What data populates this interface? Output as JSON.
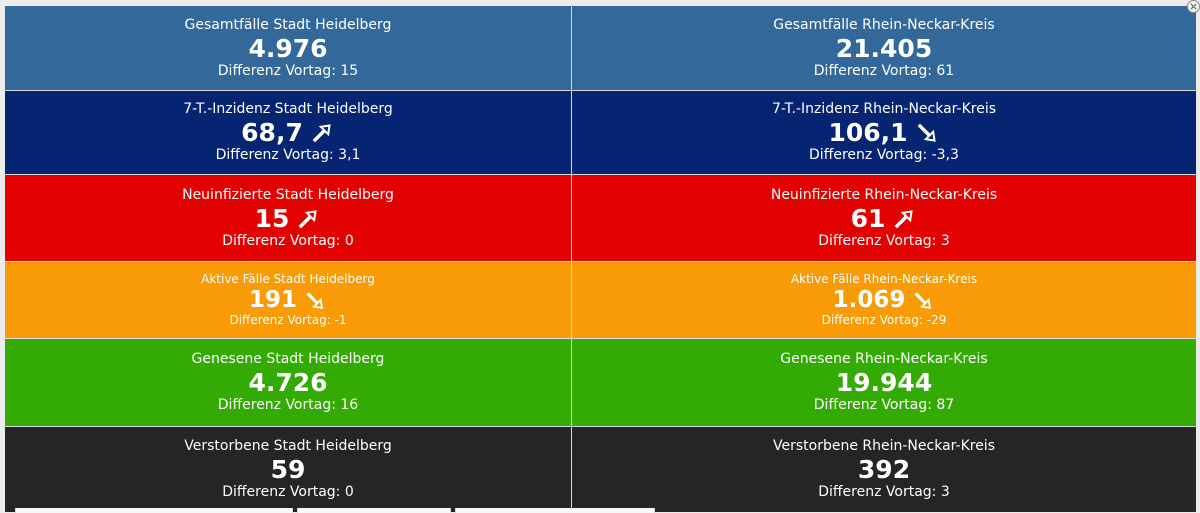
{
  "colors": {
    "blue": "#33689a",
    "navy": "#052472",
    "red": "#e30202",
    "orange": "#f99b06",
    "green": "#33ab04",
    "black": "#252525",
    "text": "#ffffff"
  },
  "tiles": [
    {
      "label": "Gesamtfälle Stadt Heidelberg",
      "value": "4.976",
      "diff": "Differenz Vortag: 15",
      "color": "blue",
      "icon": null
    },
    {
      "label": "Gesamtfälle Rhein-Neckar-Kreis",
      "value": "21.405",
      "diff": "Differenz Vortag: 61",
      "color": "blue",
      "icon": null
    },
    {
      "label": "7-T.-Inzidenz Stadt Heidelberg",
      "value": "68,7",
      "diff": "Differenz Vortag: 3,1",
      "color": "navy",
      "icon": "trend-up-icon"
    },
    {
      "label": "7-T.-Inzidenz Rhein-Neckar-Kreis",
      "value": "106,1",
      "diff": "Differenz Vortag: -3,3",
      "color": "navy",
      "icon": "trend-down-icon"
    },
    {
      "label": "Neuinfizierte Stadt Heidelberg",
      "value": "15",
      "diff": "Differenz Vortag: 0",
      "color": "red",
      "icon": "trend-up-icon"
    },
    {
      "label": "Neuinfizierte Rhein-Neckar-Kreis",
      "value": "61",
      "diff": "Differenz Vortag: 3",
      "color": "red",
      "icon": "trend-up-icon"
    },
    {
      "label": "Aktive Fälle Stadt Heidelberg",
      "value": "191",
      "diff": "Differenz Vortag: -1",
      "color": "orange",
      "icon": "trend-down-icon"
    },
    {
      "label": "Aktive Fälle Rhein-Neckar-Kreis",
      "value": "1.069",
      "diff": "Differenz Vortag: -29",
      "color": "orange",
      "icon": "trend-down-icon"
    },
    {
      "label": "Genesene Stadt Heidelberg",
      "value": "4.726",
      "diff": "Differenz Vortag: 16",
      "color": "green",
      "icon": null
    },
    {
      "label": "Genesene Rhein-Neckar-Kreis",
      "value": "19.944",
      "diff": "Differenz Vortag: 87",
      "color": "green",
      "icon": null
    },
    {
      "label": "Verstorbene Stadt Heidelberg",
      "value": "59",
      "diff": "Differenz Vortag: 0",
      "color": "black",
      "icon": null
    },
    {
      "label": "Verstorbene Rhein-Neckar-Kreis",
      "value": "392",
      "diff": "Differenz Vortag: 3",
      "color": "black",
      "icon": null
    }
  ],
  "corner_control_icon": "close-icon"
}
